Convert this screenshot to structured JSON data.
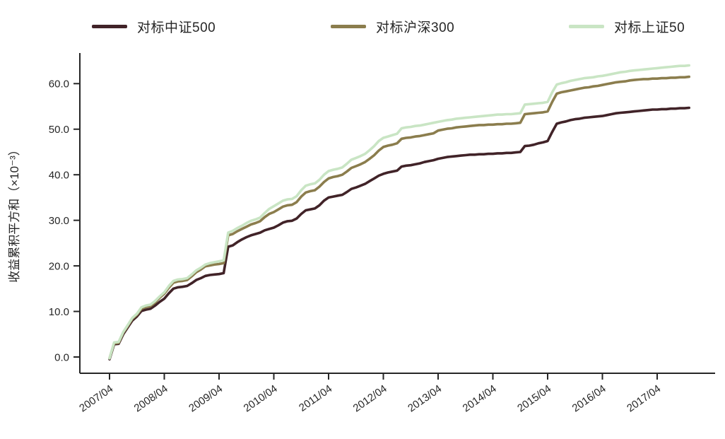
{
  "chart_data": {
    "type": "line",
    "title": "",
    "ylabel": "收益累积平方和（×10⁻³）",
    "xlabel": "",
    "x_frequency": "monthly",
    "x_start": "2007/04",
    "x_end": "2017/11",
    "x_tick_labels": [
      "2007/04",
      "2008/04",
      "2009/04",
      "2010/04",
      "2011/04",
      "2012/04",
      "2013/04",
      "2014/04",
      "2015/04",
      "2016/04",
      "2017/04"
    ],
    "y_tick_labels": [
      "0.0",
      "10.0",
      "20.0",
      "30.0",
      "40.0",
      "50.0",
      "60.0"
    ],
    "y_tick_values": [
      0,
      10,
      20,
      30,
      40,
      50,
      60
    ],
    "ylim": [
      -3.5,
      66.5
    ],
    "grid": false,
    "legend_position": "top",
    "axis_color": "#262626",
    "series": [
      {
        "name": "对标中证500",
        "color": "#412328",
        "values": [
          -0.5,
          2.8,
          2.9,
          5.0,
          6.5,
          8.0,
          8.9,
          10.1,
          10.4,
          10.6,
          11.3,
          12.1,
          12.8,
          14.0,
          15.0,
          15.3,
          15.4,
          15.6,
          16.2,
          16.9,
          17.3,
          17.8,
          18.0,
          18.1,
          18.2,
          18.4,
          24.2,
          24.5,
          25.2,
          25.8,
          26.3,
          26.7,
          27.0,
          27.3,
          27.8,
          28.1,
          28.4,
          28.9,
          29.5,
          29.8,
          29.9,
          30.4,
          31.4,
          32.2,
          32.4,
          32.6,
          33.3,
          34.3,
          35.0,
          35.2,
          35.4,
          35.6,
          36.2,
          36.9,
          37.2,
          37.6,
          38.0,
          38.6,
          39.2,
          39.8,
          40.2,
          40.5,
          40.7,
          40.9,
          41.8,
          42.0,
          42.1,
          42.3,
          42.5,
          42.8,
          43.0,
          43.2,
          43.5,
          43.7,
          43.9,
          44.0,
          44.1,
          44.2,
          44.3,
          44.4,
          44.4,
          44.5,
          44.5,
          44.6,
          44.6,
          44.7,
          44.7,
          44.8,
          44.8,
          44.9,
          45.0,
          46.3,
          46.4,
          46.6,
          46.9,
          47.1,
          47.4,
          49.4,
          51.2,
          51.5,
          51.7,
          52.0,
          52.2,
          52.3,
          52.5,
          52.6,
          52.7,
          52.8,
          52.9,
          53.1,
          53.3,
          53.5,
          53.6,
          53.7,
          53.8,
          53.9,
          54.0,
          54.1,
          54.2,
          54.3,
          54.3,
          54.4,
          54.4,
          54.5,
          54.5,
          54.6,
          54.6,
          54.7
        ]
      },
      {
        "name": "对标沪深300",
        "color": "#8b7d4d",
        "values": [
          -0.3,
          3.0,
          3.1,
          5.3,
          6.8,
          8.4,
          9.3,
          10.6,
          11.0,
          11.2,
          12.0,
          13.0,
          13.9,
          15.2,
          16.3,
          16.6,
          16.7,
          16.9,
          17.7,
          18.6,
          19.2,
          19.9,
          20.1,
          20.3,
          20.4,
          20.6,
          26.7,
          27.0,
          27.6,
          28.1,
          28.6,
          29.1,
          29.4,
          29.8,
          30.7,
          31.4,
          31.8,
          32.4,
          33.0,
          33.3,
          33.4,
          34.0,
          35.2,
          36.1,
          36.4,
          36.6,
          37.4,
          38.4,
          39.2,
          39.5,
          39.7,
          40.0,
          40.7,
          41.5,
          41.9,
          42.3,
          42.8,
          43.5,
          44.3,
          45.3,
          46.1,
          46.4,
          46.6,
          46.9,
          47.9,
          48.1,
          48.2,
          48.4,
          48.5,
          48.7,
          48.9,
          49.1,
          49.7,
          49.9,
          50.1,
          50.2,
          50.4,
          50.5,
          50.6,
          50.7,
          50.8,
          50.9,
          50.9,
          51.0,
          51.0,
          51.1,
          51.1,
          51.2,
          51.2,
          51.3,
          51.4,
          53.3,
          53.4,
          53.5,
          53.6,
          53.7,
          53.9,
          56.0,
          57.8,
          58.1,
          58.3,
          58.5,
          58.7,
          58.9,
          59.1,
          59.2,
          59.4,
          59.5,
          59.7,
          59.9,
          60.1,
          60.3,
          60.4,
          60.5,
          60.7,
          60.8,
          60.9,
          61.0,
          61.0,
          61.1,
          61.1,
          61.2,
          61.2,
          61.3,
          61.3,
          61.4,
          61.4,
          61.5
        ]
      },
      {
        "name": "对标上证50",
        "color": "#c9e5c4",
        "values": [
          -0.3,
          3.2,
          3.3,
          5.5,
          7.0,
          8.6,
          9.5,
          10.9,
          11.3,
          11.5,
          12.3,
          13.3,
          14.2,
          15.6,
          16.7,
          17.0,
          17.1,
          17.3,
          18.1,
          19.0,
          19.6,
          20.3,
          20.6,
          20.8,
          21.0,
          21.2,
          27.3,
          27.7,
          28.3,
          28.8,
          29.4,
          29.9,
          30.2,
          30.6,
          31.6,
          32.5,
          33.1,
          33.7,
          34.3,
          34.6,
          34.7,
          35.3,
          36.6,
          37.6,
          37.9,
          38.1,
          38.9,
          40.0,
          40.8,
          41.1,
          41.3,
          41.6,
          42.4,
          43.3,
          43.7,
          44.1,
          44.6,
          45.4,
          46.3,
          47.4,
          48.1,
          48.4,
          48.7,
          49.0,
          50.2,
          50.4,
          50.5,
          50.7,
          50.8,
          51.0,
          51.2,
          51.4,
          51.6,
          51.8,
          52.0,
          52.1,
          52.3,
          52.4,
          52.5,
          52.6,
          52.7,
          52.8,
          52.9,
          53.0,
          53.1,
          53.2,
          53.2,
          53.3,
          53.3,
          53.4,
          53.5,
          55.4,
          55.5,
          55.6,
          55.7,
          55.8,
          56.0,
          58.1,
          59.8,
          60.1,
          60.3,
          60.6,
          60.8,
          61.0,
          61.2,
          61.3,
          61.4,
          61.6,
          61.7,
          61.9,
          62.1,
          62.3,
          62.5,
          62.6,
          62.8,
          62.9,
          63.0,
          63.1,
          63.2,
          63.3,
          63.4,
          63.5,
          63.6,
          63.7,
          63.8,
          63.9,
          63.9,
          64.0
        ]
      }
    ]
  }
}
